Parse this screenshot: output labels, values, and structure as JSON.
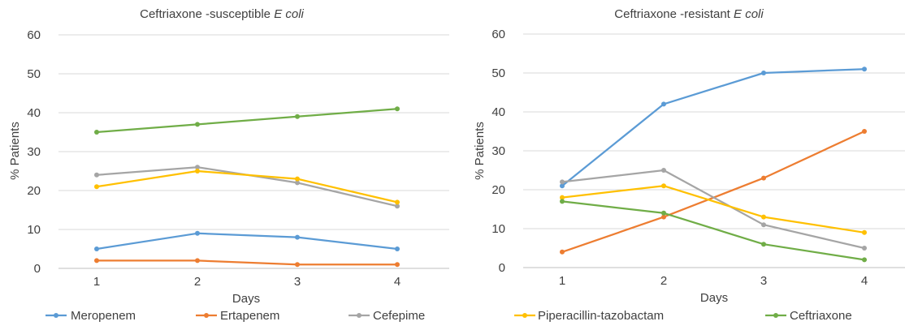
{
  "chart_data": [
    {
      "type": "line",
      "title_prefix": "Ceftriaxone -susceptible",
      "title_italic": "E coli",
      "xlabel": "Days",
      "ylabel": "% Patients",
      "categories": [
        "1",
        "2",
        "3",
        "4"
      ],
      "ylim": [
        0,
        60
      ],
      "yticks": [
        "0",
        "10",
        "20",
        "30",
        "40",
        "50",
        "60"
      ],
      "grid": true,
      "series": [
        {
          "name": "Meropenem",
          "color": "#5b9bd5",
          "values": [
            5,
            9,
            8,
            5
          ]
        },
        {
          "name": "Ertapenem",
          "color": "#ed7d31",
          "values": [
            2,
            2,
            1,
            1
          ]
        },
        {
          "name": "Cefepime",
          "color": "#a5a5a5",
          "values": [
            24,
            26,
            22,
            16
          ]
        },
        {
          "name": "Piperacillin-tazobactam",
          "color": "#ffc000",
          "values": [
            21,
            25,
            23,
            17
          ]
        },
        {
          "name": "Ceftriaxone",
          "color": "#70ad47",
          "values": [
            35,
            37,
            39,
            41
          ]
        }
      ]
    },
    {
      "type": "line",
      "title_prefix": "Ceftriaxone -resistant",
      "title_italic": "E coli",
      "xlabel": "Days",
      "ylabel": "% Patients",
      "categories": [
        "1",
        "2",
        "3",
        "4"
      ],
      "ylim": [
        0,
        60
      ],
      "yticks": [
        "0",
        "10",
        "20",
        "30",
        "40",
        "50",
        "60"
      ],
      "grid": true,
      "series": [
        {
          "name": "Meropenem",
          "color": "#5b9bd5",
          "values": [
            21,
            42,
            50,
            51
          ]
        },
        {
          "name": "Ertapenem",
          "color": "#ed7d31",
          "values": [
            4,
            13,
            23,
            35
          ]
        },
        {
          "name": "Cefepime",
          "color": "#a5a5a5",
          "values": [
            22,
            25,
            11,
            5
          ]
        },
        {
          "name": "Piperacillin-tazobactam",
          "color": "#ffc000",
          "values": [
            18,
            21,
            13,
            9
          ]
        },
        {
          "name": "Ceftriaxone",
          "color": "#70ad47",
          "values": [
            17,
            14,
            6,
            2
          ]
        }
      ]
    }
  ],
  "legend": {
    "placement": "bottom",
    "items": [
      {
        "name": "Meropenem",
        "color": "#5b9bd5"
      },
      {
        "name": "Ertapenem",
        "color": "#ed7d31"
      },
      {
        "name": "Cefepime",
        "color": "#a5a5a5"
      },
      {
        "name": "Piperacillin-tazobactam",
        "color": "#ffc000"
      },
      {
        "name": "Ceftriaxone",
        "color": "#70ad47"
      }
    ]
  }
}
